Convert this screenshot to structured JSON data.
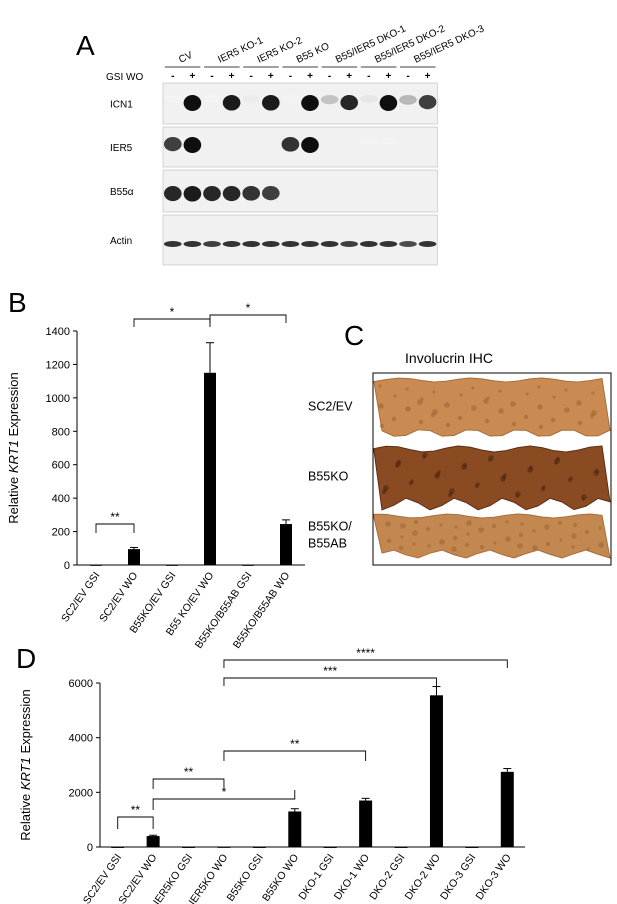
{
  "panelA": {
    "label": "A",
    "groups": [
      "CV",
      "IER5 KO-1",
      "IER5 KO-2",
      "B55 KO",
      "B55/IER5 DKO-1",
      "B55/IER5 DKO-2",
      "B55/IER5 DKO-3"
    ],
    "gsi_label": "GSI WO",
    "minus": "-",
    "plus": "+",
    "blots": [
      {
        "name": "ICN1",
        "intensity": [
          0.05,
          1.0,
          0.05,
          0.95,
          0.08,
          0.95,
          0.05,
          1.0,
          0.25,
          0.9,
          0.1,
          1.0,
          0.3,
          0.8
        ]
      },
      {
        "name": "IER5",
        "intensity": [
          0.8,
          1.0,
          0,
          0,
          0,
          0,
          0.85,
          1.0,
          0,
          0,
          0.05,
          0.05,
          0,
          0
        ]
      },
      {
        "name": "B55α",
        "intensity": [
          0.9,
          0.95,
          0.9,
          0.9,
          0.85,
          0.8,
          0,
          0,
          0,
          0,
          0,
          0,
          0,
          0
        ]
      },
      {
        "name": "Actin",
        "intensity": [
          0.85,
          0.85,
          0.8,
          0.85,
          0.85,
          0.85,
          0.85,
          0.85,
          0.85,
          0.8,
          0.85,
          0.85,
          0.75,
          0.85
        ]
      }
    ]
  },
  "chart_data": [
    {
      "panel": "B",
      "type": "bar",
      "ylabel_prefix": "Relative ",
      "ylabel_italic": "KRT1",
      "ylabel_suffix": " Expression",
      "ylim": [
        0,
        1400
      ],
      "yticks": [
        0,
        200,
        400,
        600,
        800,
        1000,
        1200,
        1400
      ],
      "categories": [
        "SC2/EV GSI",
        "SC2/EV WO",
        "B55KO/EV GSI",
        "B55 KO/EV WO",
        "B55KO/B55AB GSI",
        "B55KO/B55AB WO"
      ],
      "values": [
        1,
        95,
        1,
        1150,
        1,
        245
      ],
      "errors": [
        0,
        10,
        0,
        180,
        0,
        25
      ],
      "significance": [
        {
          "from": 0,
          "to": 1,
          "label": "**"
        },
        {
          "from": 1,
          "to": 3,
          "label": "*"
        },
        {
          "from": 3,
          "to": 5,
          "label": "*"
        }
      ]
    },
    {
      "panel": "D",
      "type": "bar",
      "ylabel_prefix": "Relative ",
      "ylabel_italic": "KRT1",
      "ylabel_suffix": " Expression",
      "ylim": [
        0,
        6000
      ],
      "yticks": [
        0,
        2000,
        4000,
        6000
      ],
      "categories": [
        "SC2/EV GSI",
        "SC2/EV WO",
        "IER5KO GSI",
        "IER5KO WO",
        "B55KO GSI",
        "B55KO WO",
        "DKO-1 GSI",
        "DKO-1 WO",
        "DKO-2 GSI",
        "DKO-2 WO",
        "DKO-3 GSI",
        "DKO-3 WO"
      ],
      "values": [
        2,
        400,
        2,
        5,
        2,
        1300,
        2,
        1700,
        2,
        5550,
        2,
        2750
      ],
      "errors": [
        0,
        30,
        0,
        0,
        0,
        100,
        0,
        80,
        0,
        320,
        0,
        120
      ],
      "significance": [
        {
          "from": 0,
          "to": 1,
          "label": "**"
        },
        {
          "from": 1,
          "to": 3,
          "label": "**"
        },
        {
          "from": 1,
          "to": 5,
          "label": "*"
        },
        {
          "from": 3,
          "to": 7,
          "label": "**"
        },
        {
          "from": 3,
          "to": 9,
          "label": "***"
        },
        {
          "from": 3,
          "to": 11,
          "label": "****"
        }
      ]
    }
  ],
  "panelC": {
    "label": "C",
    "title": "Involucrin IHC",
    "rows": [
      "SC2/EV",
      "B55KO",
      "B55KO/\nB55AB"
    ],
    "colors": [
      "#c98b52",
      "#8a4a22",
      "#c38850"
    ]
  }
}
